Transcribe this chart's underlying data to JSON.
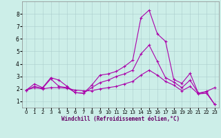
{
  "xlabel": "Windchill (Refroidissement éolien,°C)",
  "xlim": [
    -0.5,
    23.5
  ],
  "ylim": [
    0.5,
    9.0
  ],
  "yticks": [
    1,
    2,
    3,
    4,
    5,
    6,
    7,
    8
  ],
  "xticks": [
    0,
    1,
    2,
    3,
    4,
    5,
    6,
    7,
    8,
    9,
    10,
    11,
    12,
    13,
    14,
    15,
    16,
    17,
    18,
    19,
    20,
    21,
    22,
    23
  ],
  "background_color": "#cceee8",
  "grid_color": "#aacccc",
  "line_color": "#aa00aa",
  "line1": {
    "x": [
      0,
      1,
      2,
      3,
      4,
      5,
      6,
      7,
      8,
      9,
      10,
      11,
      12,
      13,
      14,
      15,
      16,
      17,
      18,
      19,
      20,
      21,
      22,
      23
    ],
    "y": [
      1.9,
      2.4,
      2.1,
      2.9,
      2.7,
      2.2,
      1.7,
      1.65,
      2.3,
      3.1,
      3.2,
      3.4,
      3.8,
      4.3,
      7.7,
      8.3,
      6.4,
      5.8,
      2.75,
      2.45,
      3.25,
      1.65,
      1.8,
      2.1
    ]
  },
  "line2": {
    "x": [
      0,
      1,
      2,
      3,
      4,
      5,
      6,
      7,
      8,
      9,
      10,
      11,
      12,
      13,
      14,
      15,
      16,
      17,
      18,
      19,
      20,
      21,
      22,
      23
    ],
    "y": [
      1.9,
      2.2,
      2.05,
      2.8,
      2.2,
      2.1,
      1.7,
      1.65,
      2.1,
      2.5,
      2.7,
      3.0,
      3.2,
      3.5,
      4.8,
      5.5,
      4.2,
      2.9,
      2.55,
      2.1,
      2.7,
      1.65,
      1.75,
      0.75
    ]
  },
  "line3": {
    "x": [
      0,
      1,
      2,
      3,
      4,
      5,
      6,
      7,
      8,
      9,
      10,
      11,
      12,
      13,
      14,
      15,
      16,
      17,
      18,
      19,
      20,
      21,
      22,
      23
    ],
    "y": [
      1.9,
      2.1,
      2.0,
      2.1,
      2.1,
      2.05,
      1.9,
      1.85,
      1.85,
      2.0,
      2.1,
      2.2,
      2.4,
      2.6,
      3.1,
      3.5,
      3.1,
      2.6,
      2.3,
      1.85,
      2.2,
      1.6,
      1.65,
      0.75
    ]
  },
  "xlabel_fontsize": 5.5,
  "tick_fontsize": 5.0,
  "linewidth": 0.8,
  "markersize": 3.0
}
